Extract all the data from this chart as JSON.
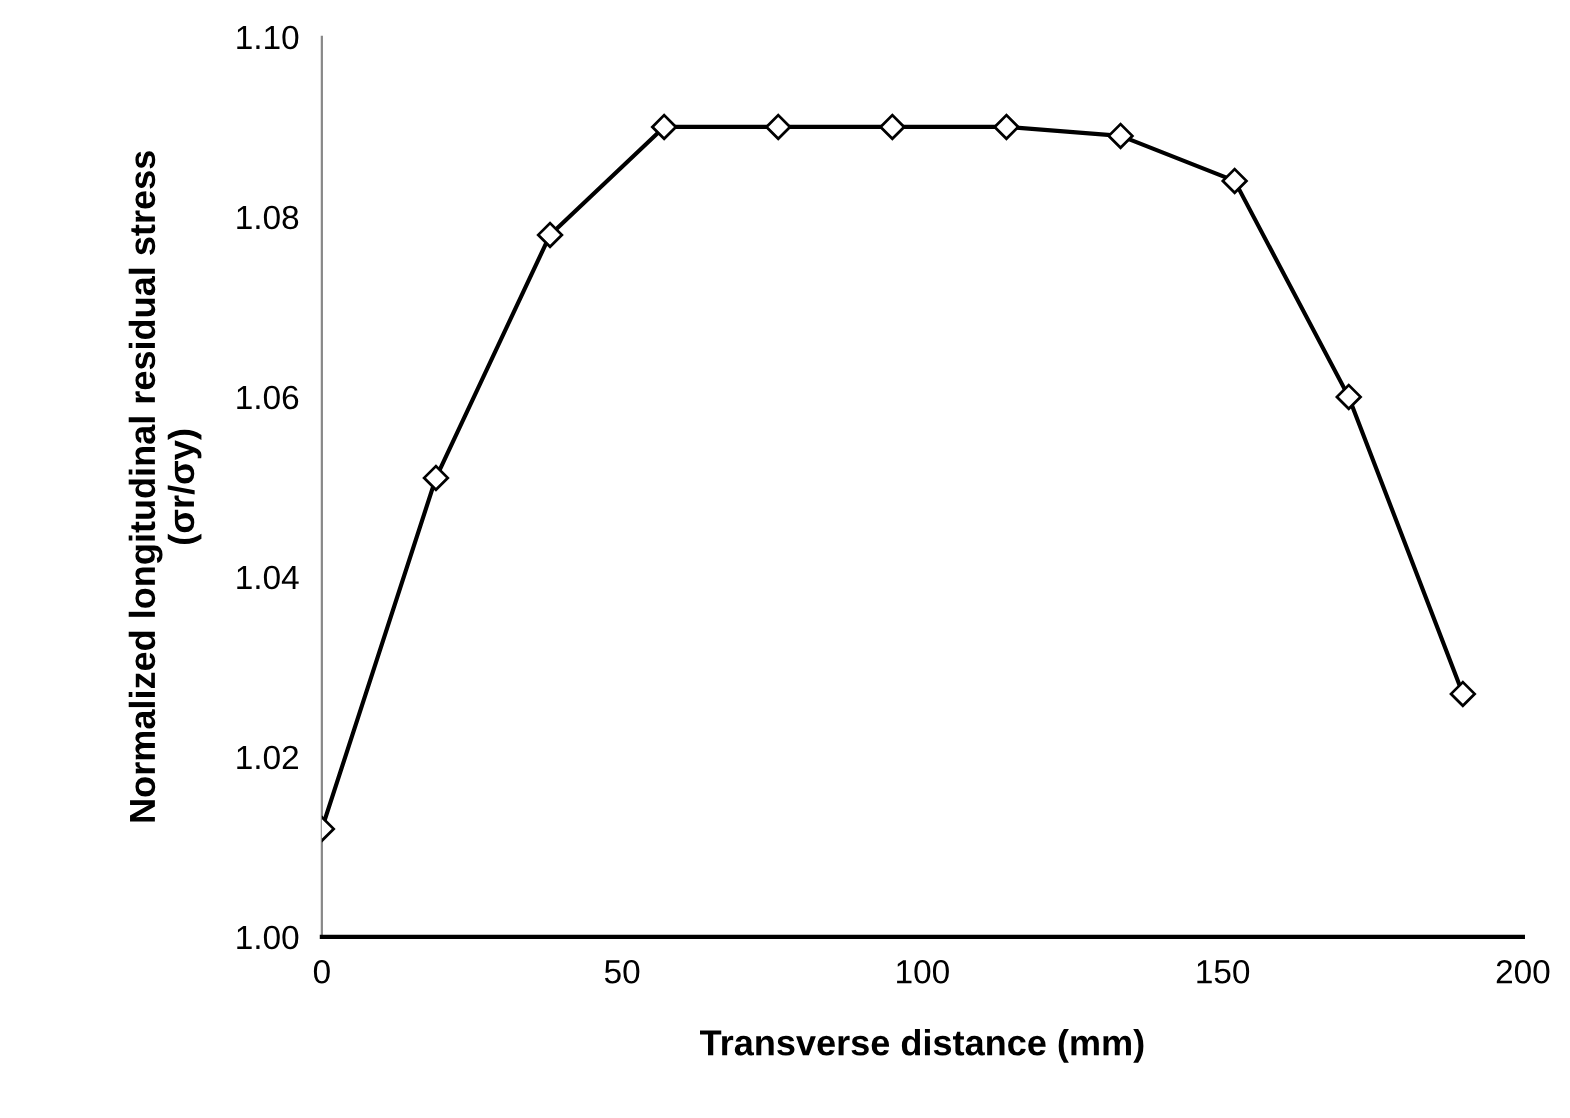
{
  "chart_data": {
    "type": "line",
    "xlabel": "Transverse distance (mm)",
    "ylabel": "Normalized longitudinal residual stress\n(σr/σy)",
    "x": [
      0,
      19,
      38,
      57,
      76,
      95,
      114,
      133,
      152,
      171,
      190
    ],
    "series": [
      {
        "color": "#000000",
        "values": [
          1.012,
          1.051,
          1.078,
          1.09,
          1.09,
          1.09,
          1.09,
          1.089,
          1.084,
          1.06,
          1.027
        ]
      }
    ],
    "xlim": [
      0,
      200
    ],
    "xticks": [
      0,
      50,
      100,
      150,
      200
    ],
    "ylim": [
      1.0,
      1.1
    ],
    "yticks": [
      {
        "value": 1.0,
        "label": "1.00"
      },
      {
        "value": 1.02,
        "label": "1.02"
      },
      {
        "value": 1.04,
        "label": "1.04"
      },
      {
        "value": 1.06,
        "label": "1.06"
      },
      {
        "value": 1.08,
        "label": "1.08"
      },
      {
        "value": 1.1,
        "label": "1.10"
      }
    ],
    "marker": "diamond",
    "line_style": "solid",
    "grid": false,
    "legend": false
  }
}
